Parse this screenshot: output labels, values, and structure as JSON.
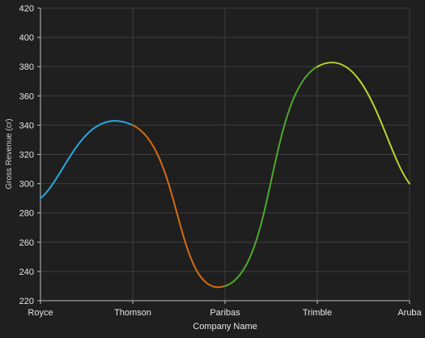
{
  "chart_data": {
    "type": "line",
    "categories": [
      "Royce",
      "Thomson",
      "Paribas",
      "Trimble",
      "Aruba"
    ],
    "series": [
      {
        "values": [
          290,
          340,
          230,
          380,
          300
        ],
        "segment_colors": [
          "#29a7e1",
          "#d46c15",
          "#4ea92c",
          "#b8d431"
        ]
      }
    ],
    "xlabel": "Company Name",
    "ylabel": "Gross Revenue (cr)",
    "ylim": [
      220,
      420
    ],
    "yticks": [
      220,
      240,
      260,
      280,
      300,
      320,
      340,
      360,
      380,
      400,
      420
    ],
    "grid": true
  },
  "colors": {
    "background": "#1f1f1f",
    "grid": "#3d3d3d",
    "axis": "#bdbdbd",
    "text": "#e6e6e6"
  }
}
